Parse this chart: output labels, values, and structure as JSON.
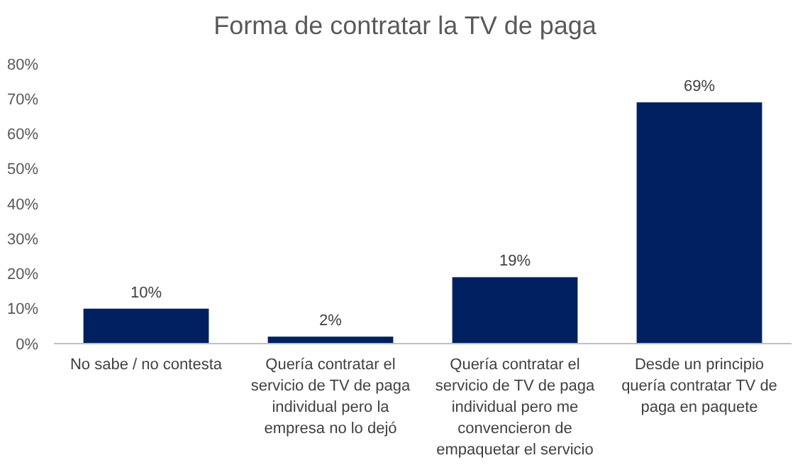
{
  "chart_data": {
    "type": "bar",
    "title": "Forma de contratar la TV de paga",
    "categories": [
      "No sabe / no contesta",
      "Quería contratar el servicio de TV de paga individual pero la empresa no lo dejó",
      "Quería contratar el servicio de TV de paga individual pero me convencieron de empaquetar el servicio",
      "Desde un principio quería contratar TV de paga en paquete"
    ],
    "values": [
      10,
      2,
      19,
      69
    ],
    "value_labels": [
      "10%",
      "2%",
      "19%",
      "69%"
    ],
    "color": "#002060",
    "ylim": [
      0,
      80
    ],
    "yticks": [
      {
        "value": 0,
        "label": "0%"
      },
      {
        "value": 10,
        "label": "10%"
      },
      {
        "value": 20,
        "label": "20%"
      },
      {
        "value": 30,
        "label": "30%"
      },
      {
        "value": 40,
        "label": "40%"
      },
      {
        "value": 50,
        "label": "50%"
      },
      {
        "value": 60,
        "label": "60%"
      },
      {
        "value": 70,
        "label": "70%"
      },
      {
        "value": 80,
        "label": "80%"
      }
    ],
    "grid": false
  }
}
